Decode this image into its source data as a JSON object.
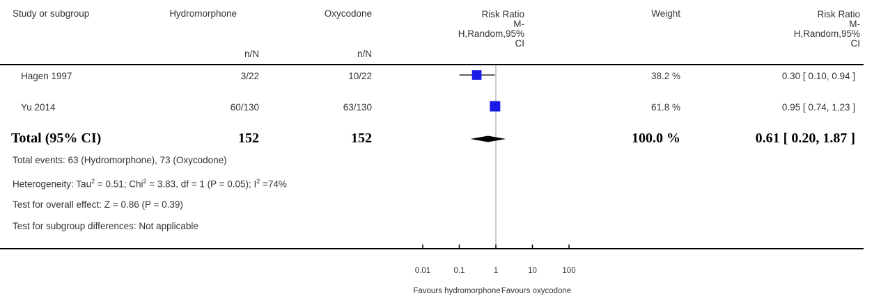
{
  "headers": {
    "study": "Study or subgroup",
    "group1": "Hydromorphone",
    "group2": "Oxycodone",
    "group1_sub": "n/N",
    "group2_sub": "n/N",
    "plot_title": [
      "Risk Ratio",
      "M-",
      "H,Random,95%",
      "CI"
    ],
    "weight": "Weight",
    "effect_title": [
      "Risk Ratio",
      "M-",
      "H,Random,95%",
      "CI"
    ]
  },
  "studies": [
    {
      "name": "Hagen 1997",
      "g1": "3/22",
      "g2": "10/22",
      "weight": "38.2 %",
      "ci_text": "0.30 [ 0.10, 0.94 ]"
    },
    {
      "name": "Yu 2014",
      "g1": "60/130",
      "g2": "63/130",
      "weight": "61.8 %",
      "ci_text": "0.95 [ 0.74, 1.23 ]"
    }
  ],
  "total": {
    "label": "Total (95% CI)",
    "g1": "152",
    "g2": "152",
    "weight": "100.0 %",
    "ci_text": "0.61 [ 0.20, 1.87 ]"
  },
  "footnotes": {
    "events": "Total events: 63 (Hydromorphone), 73 (Oxycodone)",
    "heterogeneity": "Heterogeneity: Tau² = 0.51; Chi² = 3.83, df = 1 (P = 0.05); I² =74%",
    "overall": "Test for overall effect: Z = 0.86 (P = 0.39)",
    "subgroup": "Test for subgroup differences: Not applicable"
  },
  "axis": {
    "ticks": [
      "0.01",
      "0.1",
      "1",
      "10",
      "100"
    ],
    "left_label": "Favours hydromorphone",
    "right_label": "Favours oxycodone"
  },
  "colors": {
    "marker": "#1a1ae6",
    "diamond": "#000000",
    "line": "#000000"
  },
  "chart_data": {
    "type": "forest",
    "scale": "log",
    "xlim": [
      0.01,
      100
    ],
    "reference": 1,
    "studies": [
      {
        "name": "Hagen 1997",
        "rr": 0.3,
        "lo": 0.1,
        "hi": 0.94,
        "weight": 38.2
      },
      {
        "name": "Yu 2014",
        "rr": 0.95,
        "lo": 0.74,
        "hi": 1.23,
        "weight": 61.8
      }
    ],
    "pooled": {
      "rr": 0.61,
      "lo": 0.2,
      "hi": 1.87
    }
  }
}
